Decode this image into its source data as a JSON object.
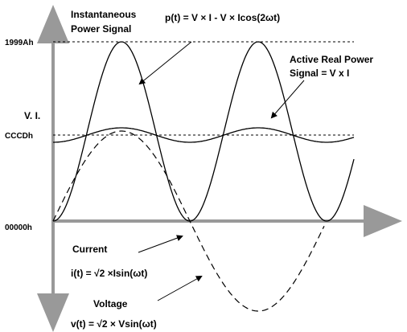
{
  "labels": {
    "instantaneous_1": "Instantaneous",
    "instantaneous_2": "Power Signal",
    "power_formula": "p(t) = V × I - V × Icos(2ωt)",
    "active_1": "Active Real Power",
    "active_2": "Signal = V x I",
    "axis_label": "V. I.",
    "level_high": "1999Ah",
    "level_mid": "CCCDh",
    "level_zero": "00000h",
    "current": "Current",
    "current_formula": "i(t) = √2 ×Isin(ωt)",
    "voltage": "Voltage",
    "voltage_formula": "v(t) = √2 × Vsin(ωt)"
  }
}
